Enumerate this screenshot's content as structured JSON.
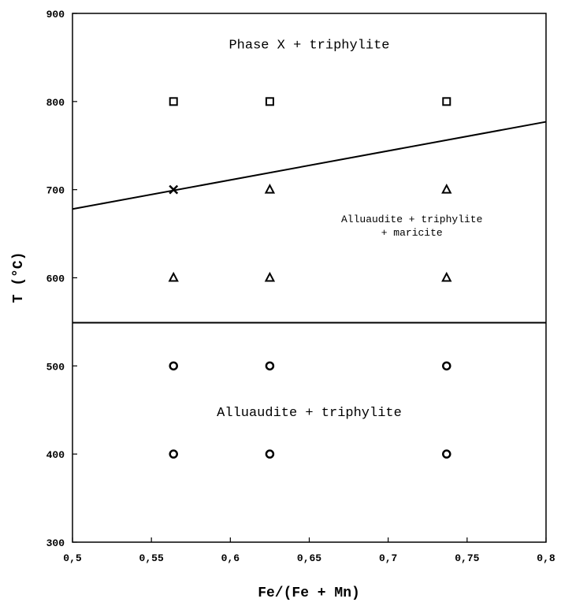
{
  "chart_data": {
    "type": "scatter",
    "title": "",
    "xlabel": "Fe/(Fe + Mn)",
    "ylabel": "T (°C)",
    "xlim": [
      0.5,
      0.8
    ],
    "ylim": [
      300,
      900
    ],
    "x_ticks": [
      "0,5",
      "0,55",
      "0,6",
      "0,65",
      "0,7",
      "0,75",
      "0,8"
    ],
    "y_ticks": [
      "300",
      "400",
      "500",
      "600",
      "700",
      "800",
      "900"
    ],
    "grid": false,
    "legend": "none",
    "series": [
      {
        "marker": "square",
        "points": [
          [
            0.564,
            800
          ],
          [
            0.625,
            800
          ],
          [
            0.737,
            800
          ]
        ]
      },
      {
        "marker": "cross",
        "points": [
          [
            0.564,
            700
          ]
        ]
      },
      {
        "marker": "triangle",
        "points": [
          [
            0.625,
            700
          ],
          [
            0.737,
            700
          ],
          [
            0.564,
            600
          ],
          [
            0.625,
            600
          ],
          [
            0.737,
            600
          ]
        ]
      },
      {
        "marker": "circle",
        "points": [
          [
            0.564,
            500
          ],
          [
            0.625,
            500
          ],
          [
            0.737,
            500
          ],
          [
            0.564,
            400
          ],
          [
            0.625,
            400
          ],
          [
            0.737,
            400
          ]
        ]
      }
    ],
    "lines": [
      {
        "points": [
          [
            0.5,
            678
          ],
          [
            0.8,
            777
          ]
        ]
      },
      {
        "points": [
          [
            0.5,
            549
          ],
          [
            0.8,
            549
          ]
        ]
      }
    ],
    "annotations": [
      {
        "lines": [
          "Phase X + triphylite"
        ],
        "x": 0.65,
        "y": 860,
        "size": "large"
      },
      {
        "lines": [
          "Alluaudite + triphylite",
          "+ maricite"
        ],
        "x": 0.715,
        "y": 663,
        "size": "small"
      },
      {
        "lines": [
          "Alluaudite + triphylite"
        ],
        "x": 0.65,
        "y": 443,
        "size": "large"
      }
    ]
  }
}
